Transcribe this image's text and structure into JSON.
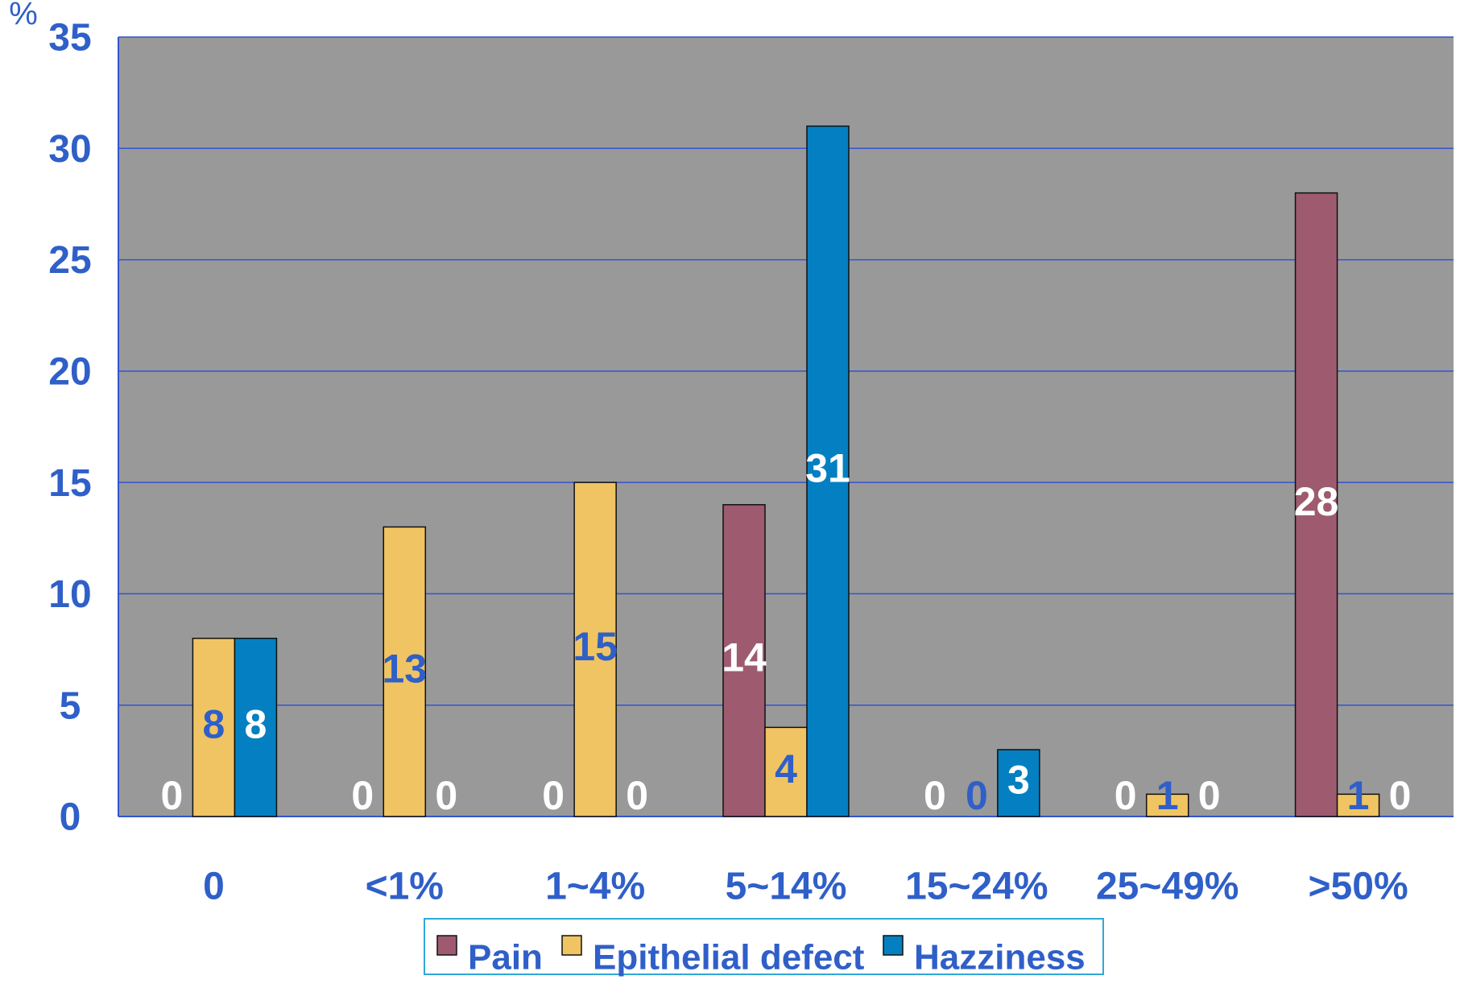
{
  "chart_data": {
    "type": "bar",
    "y_label": "%",
    "categories": [
      "0",
      "<1%",
      "1~4%",
      "5~14%",
      "15~24%",
      "25~49%",
      ">50%"
    ],
    "series": [
      {
        "name": "Pain",
        "color": "#9e5b70",
        "values": [
          0,
          0,
          0,
          14,
          0,
          0,
          28
        ]
      },
      {
        "name": "Epithelial defect",
        "color": "#f0c462",
        "values": [
          8,
          13,
          15,
          4,
          0,
          1,
          1
        ]
      },
      {
        "name": "Hazziness",
        "color": "#0480c2",
        "values": [
          8,
          0,
          0,
          31,
          3,
          0,
          0
        ]
      }
    ],
    "ylim": [
      0,
      35
    ],
    "yticks": [
      0,
      5,
      10,
      15,
      20,
      25,
      30,
      35
    ],
    "grid": true
  }
}
